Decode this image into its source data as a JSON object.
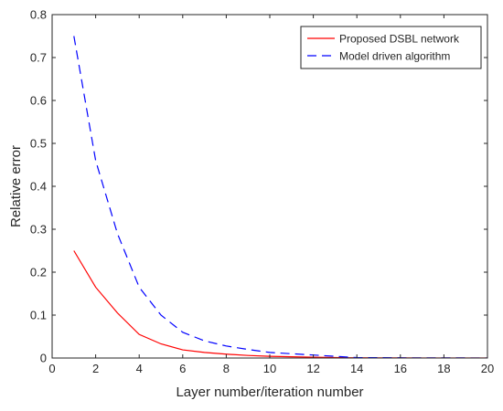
{
  "chart_data": {
    "type": "line",
    "title": "",
    "xlabel": "Layer number/iteration number",
    "ylabel": "Relative error",
    "xlim": [
      0,
      20
    ],
    "ylim": [
      0,
      0.8
    ],
    "xticks": [
      0,
      2,
      4,
      6,
      8,
      10,
      12,
      14,
      16,
      18,
      20
    ],
    "yticks": [
      0,
      0.1,
      0.2,
      0.3,
      0.4,
      0.5,
      0.6,
      0.7,
      0.8
    ],
    "grid": false,
    "legend_position": "top-right",
    "series": [
      {
        "name": "Proposed DSBL network",
        "color": "#ff0000",
        "style": "solid",
        "x": [
          1,
          2,
          3,
          4,
          5,
          6,
          7,
          8,
          9,
          10,
          11,
          12,
          13,
          14,
          15,
          16,
          17,
          18,
          19,
          20
        ],
        "y": [
          0.25,
          0.165,
          0.105,
          0.055,
          0.033,
          0.019,
          0.013,
          0.009,
          0.006,
          0.004,
          0.003,
          0.002,
          0.001,
          0.0005,
          0.0003,
          0.0002,
          0.0001,
          0.0001,
          0.0001,
          0.0001
        ]
      },
      {
        "name": "Model driven algorithm",
        "color": "#0000ff",
        "style": "dashed",
        "x": [
          1,
          2,
          3,
          4,
          5,
          6,
          7,
          8,
          9,
          10,
          11,
          12,
          13,
          14,
          15,
          16,
          17,
          18,
          19,
          20
        ],
        "y": [
          0.75,
          0.46,
          0.29,
          0.165,
          0.1,
          0.06,
          0.04,
          0.028,
          0.02,
          0.013,
          0.01,
          0.007,
          0.004,
          0.001,
          0.0008,
          0.0005,
          0.0003,
          0.0002,
          0.0002,
          0.0001
        ]
      }
    ]
  }
}
